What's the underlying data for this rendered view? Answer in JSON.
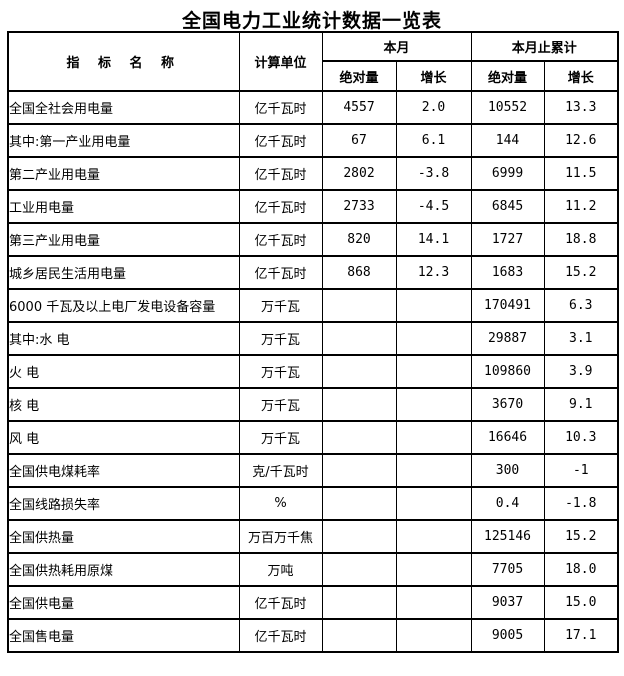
{
  "title": "全国电力工业统计数据一览表",
  "colors": {
    "background": "#ffffff",
    "border": "#000000",
    "text": "#000000"
  },
  "table": {
    "header": {
      "indicator": "指 标 名 称",
      "unit": "计算单位",
      "this_month": "本月",
      "cumulative": "本月止累计",
      "sub": [
        "绝对量",
        "增长",
        "绝对量",
        "增长"
      ]
    },
    "rows": [
      {
        "name": "全国全社会用电量",
        "indent": 0,
        "unit": "亿千瓦时",
        "month_abs": "4557",
        "month_growth": "2.0",
        "cum_abs": "10552",
        "cum_growth": "13.3"
      },
      {
        "name": "其中:第一产业用电量",
        "indent": 0,
        "unit": "亿千瓦时",
        "month_abs": "67",
        "month_growth": "6.1",
        "cum_abs": "144",
        "cum_growth": "12.6"
      },
      {
        "name": "第二产业用电量",
        "indent": 1,
        "unit": "亿千瓦时",
        "month_abs": "2802",
        "month_growth": "-3.8",
        "cum_abs": "6999",
        "cum_growth": "11.5"
      },
      {
        "name": "工业用电量",
        "indent": 2,
        "unit": "亿千瓦时",
        "month_abs": "2733",
        "month_growth": "-4.5",
        "cum_abs": "6845",
        "cum_growth": "11.2"
      },
      {
        "name": "第三产业用电量",
        "indent": 1,
        "unit": "亿千瓦时",
        "month_abs": "820",
        "month_growth": "14.1",
        "cum_abs": "1727",
        "cum_growth": "18.8"
      },
      {
        "name": "城乡居民生活用电量",
        "indent": 1,
        "unit": "亿千瓦时",
        "month_abs": "868",
        "month_growth": "12.3",
        "cum_abs": "1683",
        "cum_growth": "15.2"
      },
      {
        "name": "6000 千瓦及以上电厂发电设备容量",
        "indent": 0,
        "unit": "万千瓦",
        "month_abs": "",
        "month_growth": "",
        "cum_abs": "170491",
        "cum_growth": "6.3"
      },
      {
        "name": "其中:水 电",
        "indent": 1,
        "unit": "万千瓦",
        "month_abs": "",
        "month_growth": "",
        "cum_abs": "29887",
        "cum_growth": "3.1"
      },
      {
        "name": "火 电",
        "indent": 2,
        "unit": "万千瓦",
        "month_abs": "",
        "month_growth": "",
        "cum_abs": "109860",
        "cum_growth": "3.9"
      },
      {
        "name": "核 电",
        "indent": 2,
        "unit": "万千瓦",
        "month_abs": "",
        "month_growth": "",
        "cum_abs": "3670",
        "cum_growth": "9.1"
      },
      {
        "name": "风 电",
        "indent": 2,
        "unit": "万千瓦",
        "month_abs": "",
        "month_growth": "",
        "cum_abs": "16646",
        "cum_growth": "10.3"
      },
      {
        "name": "全国供电煤耗率",
        "indent": 0,
        "unit": "克/千瓦时",
        "month_abs": "",
        "month_growth": "",
        "cum_abs": "300",
        "cum_growth": "-1"
      },
      {
        "name": "全国线路损失率",
        "indent": 0,
        "unit": "%",
        "month_abs": "",
        "month_growth": "",
        "cum_abs": "0.4",
        "cum_growth": "-1.8"
      },
      {
        "name": "全国供热量",
        "indent": 0,
        "unit": "万百万千焦",
        "month_abs": "",
        "month_growth": "",
        "cum_abs": "125146",
        "cum_growth": "15.2"
      },
      {
        "name": "全国供热耗用原煤",
        "indent": 0,
        "unit": "万吨",
        "month_abs": "",
        "month_growth": "",
        "cum_abs": "7705",
        "cum_growth": "18.0"
      },
      {
        "name": "全国供电量",
        "indent": 0,
        "unit": "亿千瓦时",
        "month_abs": "",
        "month_growth": "",
        "cum_abs": "9037",
        "cum_growth": "15.0"
      },
      {
        "name": "全国售电量",
        "indent": 0,
        "unit": "亿千瓦时",
        "month_abs": "",
        "month_growth": "",
        "cum_abs": "9005",
        "cum_growth": "17.1"
      }
    ]
  }
}
